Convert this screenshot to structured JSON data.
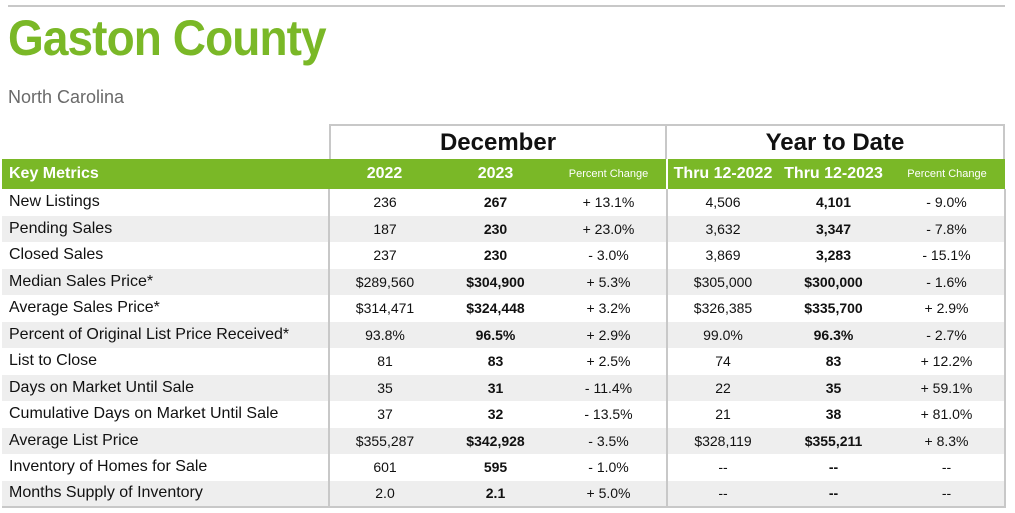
{
  "header": {
    "title": "Gaston County",
    "subtitle": "North Carolina"
  },
  "groups": {
    "december": "December",
    "ytd": "Year to Date"
  },
  "columns": {
    "metric": "Key Metrics",
    "y2022": "2022",
    "y2023": "2023",
    "pct1": "Percent Change",
    "thru2022": "Thru 12-2022",
    "thru2023": "Thru 12-2023",
    "pct2": "Percent Change"
  },
  "rows": [
    {
      "metric": "New Listings",
      "v2022": "236",
      "v2023": "267",
      "pct1": "+ 13.1%",
      "ytd2022": "4,506",
      "ytd2023": "4,101",
      "pct2": "- 9.0%"
    },
    {
      "metric": "Pending Sales",
      "v2022": "187",
      "v2023": "230",
      "pct1": "+ 23.0%",
      "ytd2022": "3,632",
      "ytd2023": "3,347",
      "pct2": "- 7.8%"
    },
    {
      "metric": "Closed Sales",
      "v2022": "237",
      "v2023": "230",
      "pct1": "- 3.0%",
      "ytd2022": "3,869",
      "ytd2023": "3,283",
      "pct2": "- 15.1%"
    },
    {
      "metric": "Median Sales Price*",
      "v2022": "$289,560",
      "v2023": "$304,900",
      "pct1": "+ 5.3%",
      "ytd2022": "$305,000",
      "ytd2023": "$300,000",
      "pct2": "- 1.6%"
    },
    {
      "metric": "Average Sales Price*",
      "v2022": "$314,471",
      "v2023": "$324,448",
      "pct1": "+ 3.2%",
      "ytd2022": "$326,385",
      "ytd2023": "$335,700",
      "pct2": "+ 2.9%"
    },
    {
      "metric": "Percent of Original List Price Received*",
      "v2022": "93.8%",
      "v2023": "96.5%",
      "pct1": "+ 2.9%",
      "ytd2022": "99.0%",
      "ytd2023": "96.3%",
      "pct2": "- 2.7%"
    },
    {
      "metric": "List to Close",
      "v2022": "81",
      "v2023": "83",
      "pct1": "+ 2.5%",
      "ytd2022": "74",
      "ytd2023": "83",
      "pct2": "+ 12.2%"
    },
    {
      "metric": "Days on Market Until Sale",
      "v2022": "35",
      "v2023": "31",
      "pct1": "- 11.4%",
      "ytd2022": "22",
      "ytd2023": "35",
      "pct2": "+ 59.1%"
    },
    {
      "metric": "Cumulative Days on Market Until Sale",
      "v2022": "37",
      "v2023": "32",
      "pct1": "- 13.5%",
      "ytd2022": "21",
      "ytd2023": "38",
      "pct2": "+ 81.0%"
    },
    {
      "metric": "Average List Price",
      "v2022": "$355,287",
      "v2023": "$342,928",
      "pct1": "- 3.5%",
      "ytd2022": "$328,119",
      "ytd2023": "$355,211",
      "pct2": "+ 8.3%"
    },
    {
      "metric": "Inventory of Homes for Sale",
      "v2022": "601",
      "v2023": "595",
      "pct1": "- 1.0%",
      "ytd2022": "--",
      "ytd2023": "--",
      "pct2": "--"
    },
    {
      "metric": "Months Supply of Inventory",
      "v2022": "2.0",
      "v2023": "2.1",
      "pct1": "+ 5.0%",
      "ytd2022": "--",
      "ytd2023": "--",
      "pct2": "--"
    }
  ]
}
